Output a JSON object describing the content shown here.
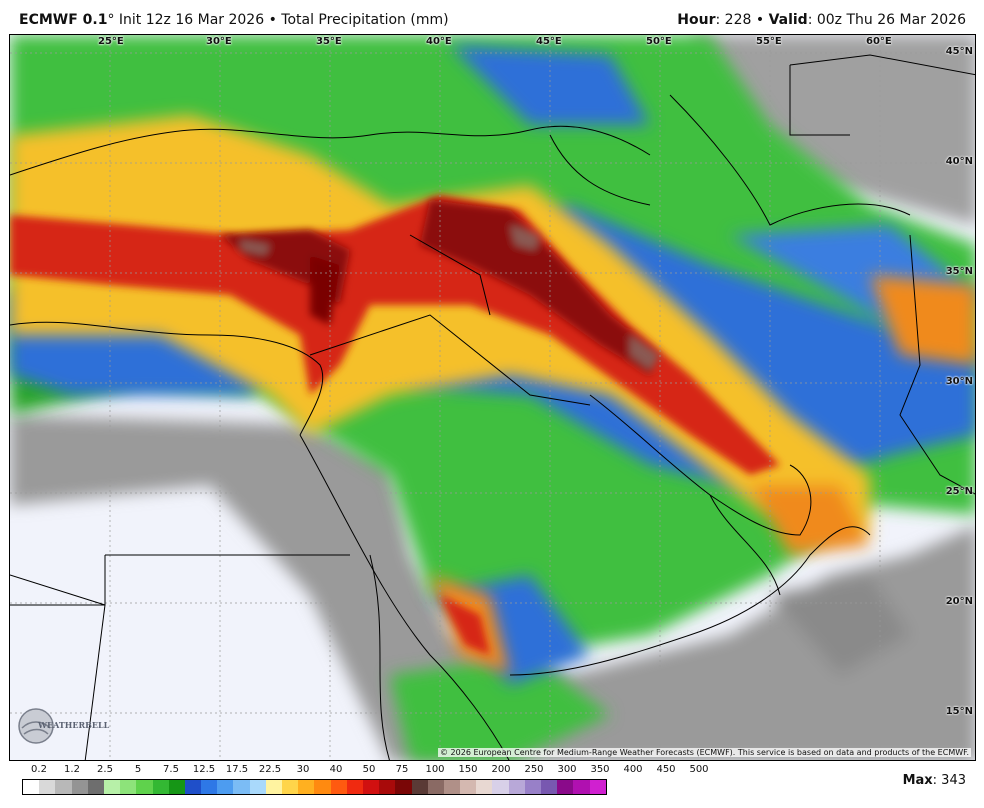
{
  "header": {
    "model": "ECMWF 0.1",
    "degree": "°",
    "init": "Init 12z 16 Mar 2026",
    "sep": "•",
    "product": "Total Precipitation (mm)",
    "hour_label": "Hour",
    "hour_value": ": 228",
    "valid_label": "Valid",
    "valid_value": ": 00z Thu 26 Mar 2026"
  },
  "map": {
    "lon_labels": [
      "25°E",
      "30°E",
      "35°E",
      "40°E",
      "45°E",
      "50°E",
      "55°E",
      "60°E"
    ],
    "lat_labels": [
      "45°N",
      "40°N",
      "35°N",
      "30°N",
      "25°N",
      "20°N",
      "15°N"
    ],
    "copyright": "© 2026 European Centre for Medium-Range Weather Forecasts (ECMWF). This service is based on data and products of the ECMWF.",
    "logo_text": "WEATHERBELL",
    "colors": {
      "ocean": "#f1f3fb",
      "gray": "#8a8a8a",
      "green": "#3fbf3f",
      "dark_green": "#1f9a2a",
      "blue": "#2f6fd8",
      "yellow": "#f5d23c",
      "orange": "#f08a1f",
      "red": "#d62818",
      "dark_red": "#8b0f0f",
      "brown": "#8a5a52"
    }
  },
  "legend": {
    "labels": [
      "0.2",
      "1.2",
      "2.5",
      "5",
      "7.5",
      "12.5",
      "17.5",
      "22.5",
      "30",
      "40",
      "50",
      "75",
      "100",
      "150",
      "200",
      "250",
      "300",
      "350",
      "400",
      "450",
      "500"
    ],
    "colors": [
      "#ffffff",
      "#d9d9d9",
      "#b8b8b8",
      "#949494",
      "#6e6e6e",
      "#b7f0a8",
      "#8de37a",
      "#5fd24c",
      "#33b833",
      "#169616",
      "#1f4fc9",
      "#2e78e6",
      "#4d9cf0",
      "#7bbcf5",
      "#a9d9fb",
      "#fff3a0",
      "#ffd54a",
      "#ffb020",
      "#ff8a10",
      "#ff5a10",
      "#f02a10",
      "#d11010",
      "#a80a0a",
      "#7a0606",
      "#5a3a36",
      "#8a6a64",
      "#b09088",
      "#d4b8b0",
      "#e8d8d2",
      "#d8d0e8",
      "#b8a8d8",
      "#9880c8",
      "#7858b0",
      "#8a0a8a",
      "#b010b0",
      "#d020d0"
    ],
    "max_label": "Max",
    "max_value": ": 343"
  }
}
